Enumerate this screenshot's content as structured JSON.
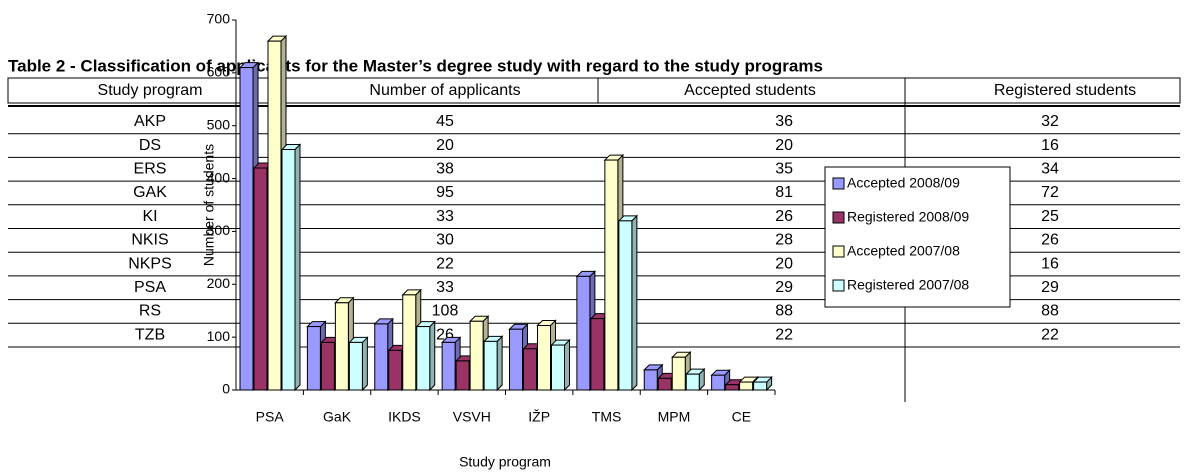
{
  "table": {
    "title": "Table 2 - Classification of applicants for the Master’s degree study with regard to the study programs",
    "header": [
      "Study program",
      "Number of applicants",
      "Accepted students",
      "Registered students"
    ],
    "rows": [
      [
        "AKP",
        45,
        36,
        32
      ],
      [
        "DS",
        20,
        20,
        16
      ],
      [
        "ERS",
        38,
        35,
        34
      ],
      [
        "GAK",
        95,
        81,
        72
      ],
      [
        "KI",
        33,
        26,
        25
      ],
      [
        "NKIS",
        30,
        28,
        26
      ],
      [
        "NKPS",
        22,
        20,
        16
      ],
      [
        "PSA",
        33,
        29,
        29
      ],
      [
        "RS",
        108,
        88,
        88
      ],
      [
        "TZB",
        26,
        22,
        22
      ]
    ]
  },
  "chart_data": {
    "type": "bar",
    "x_label": "Study program",
    "y_label": "Number of students",
    "categories": [
      "PSA",
      "GaK",
      "IKDS",
      "VSVH",
      "IŽP",
      "TMS",
      "MPM",
      "CE"
    ],
    "series": [
      {
        "name": "Accepted 2008/09",
        "color": "#9999ff",
        "values": [
          610,
          120,
          125,
          90,
          115,
          215,
          38,
          28
        ]
      },
      {
        "name": "Registered 2008/09",
        "color": "#993366",
        "values": [
          420,
          90,
          75,
          55,
          78,
          135,
          22,
          10
        ]
      },
      {
        "name": "Accepted 2007/08",
        "color": "#ffffcc",
        "values": [
          660,
          165,
          180,
          130,
          122,
          435,
          62,
          15
        ]
      },
      {
        "name": "Registered 2007/08",
        "color": "#ccffff",
        "values": [
          455,
          90,
          120,
          92,
          85,
          320,
          30,
          15
        ]
      }
    ],
    "ylim": [
      0,
      700
    ],
    "yticks": [
      0,
      100,
      200,
      300,
      400,
      500,
      600,
      700
    ],
    "legend": "right"
  }
}
